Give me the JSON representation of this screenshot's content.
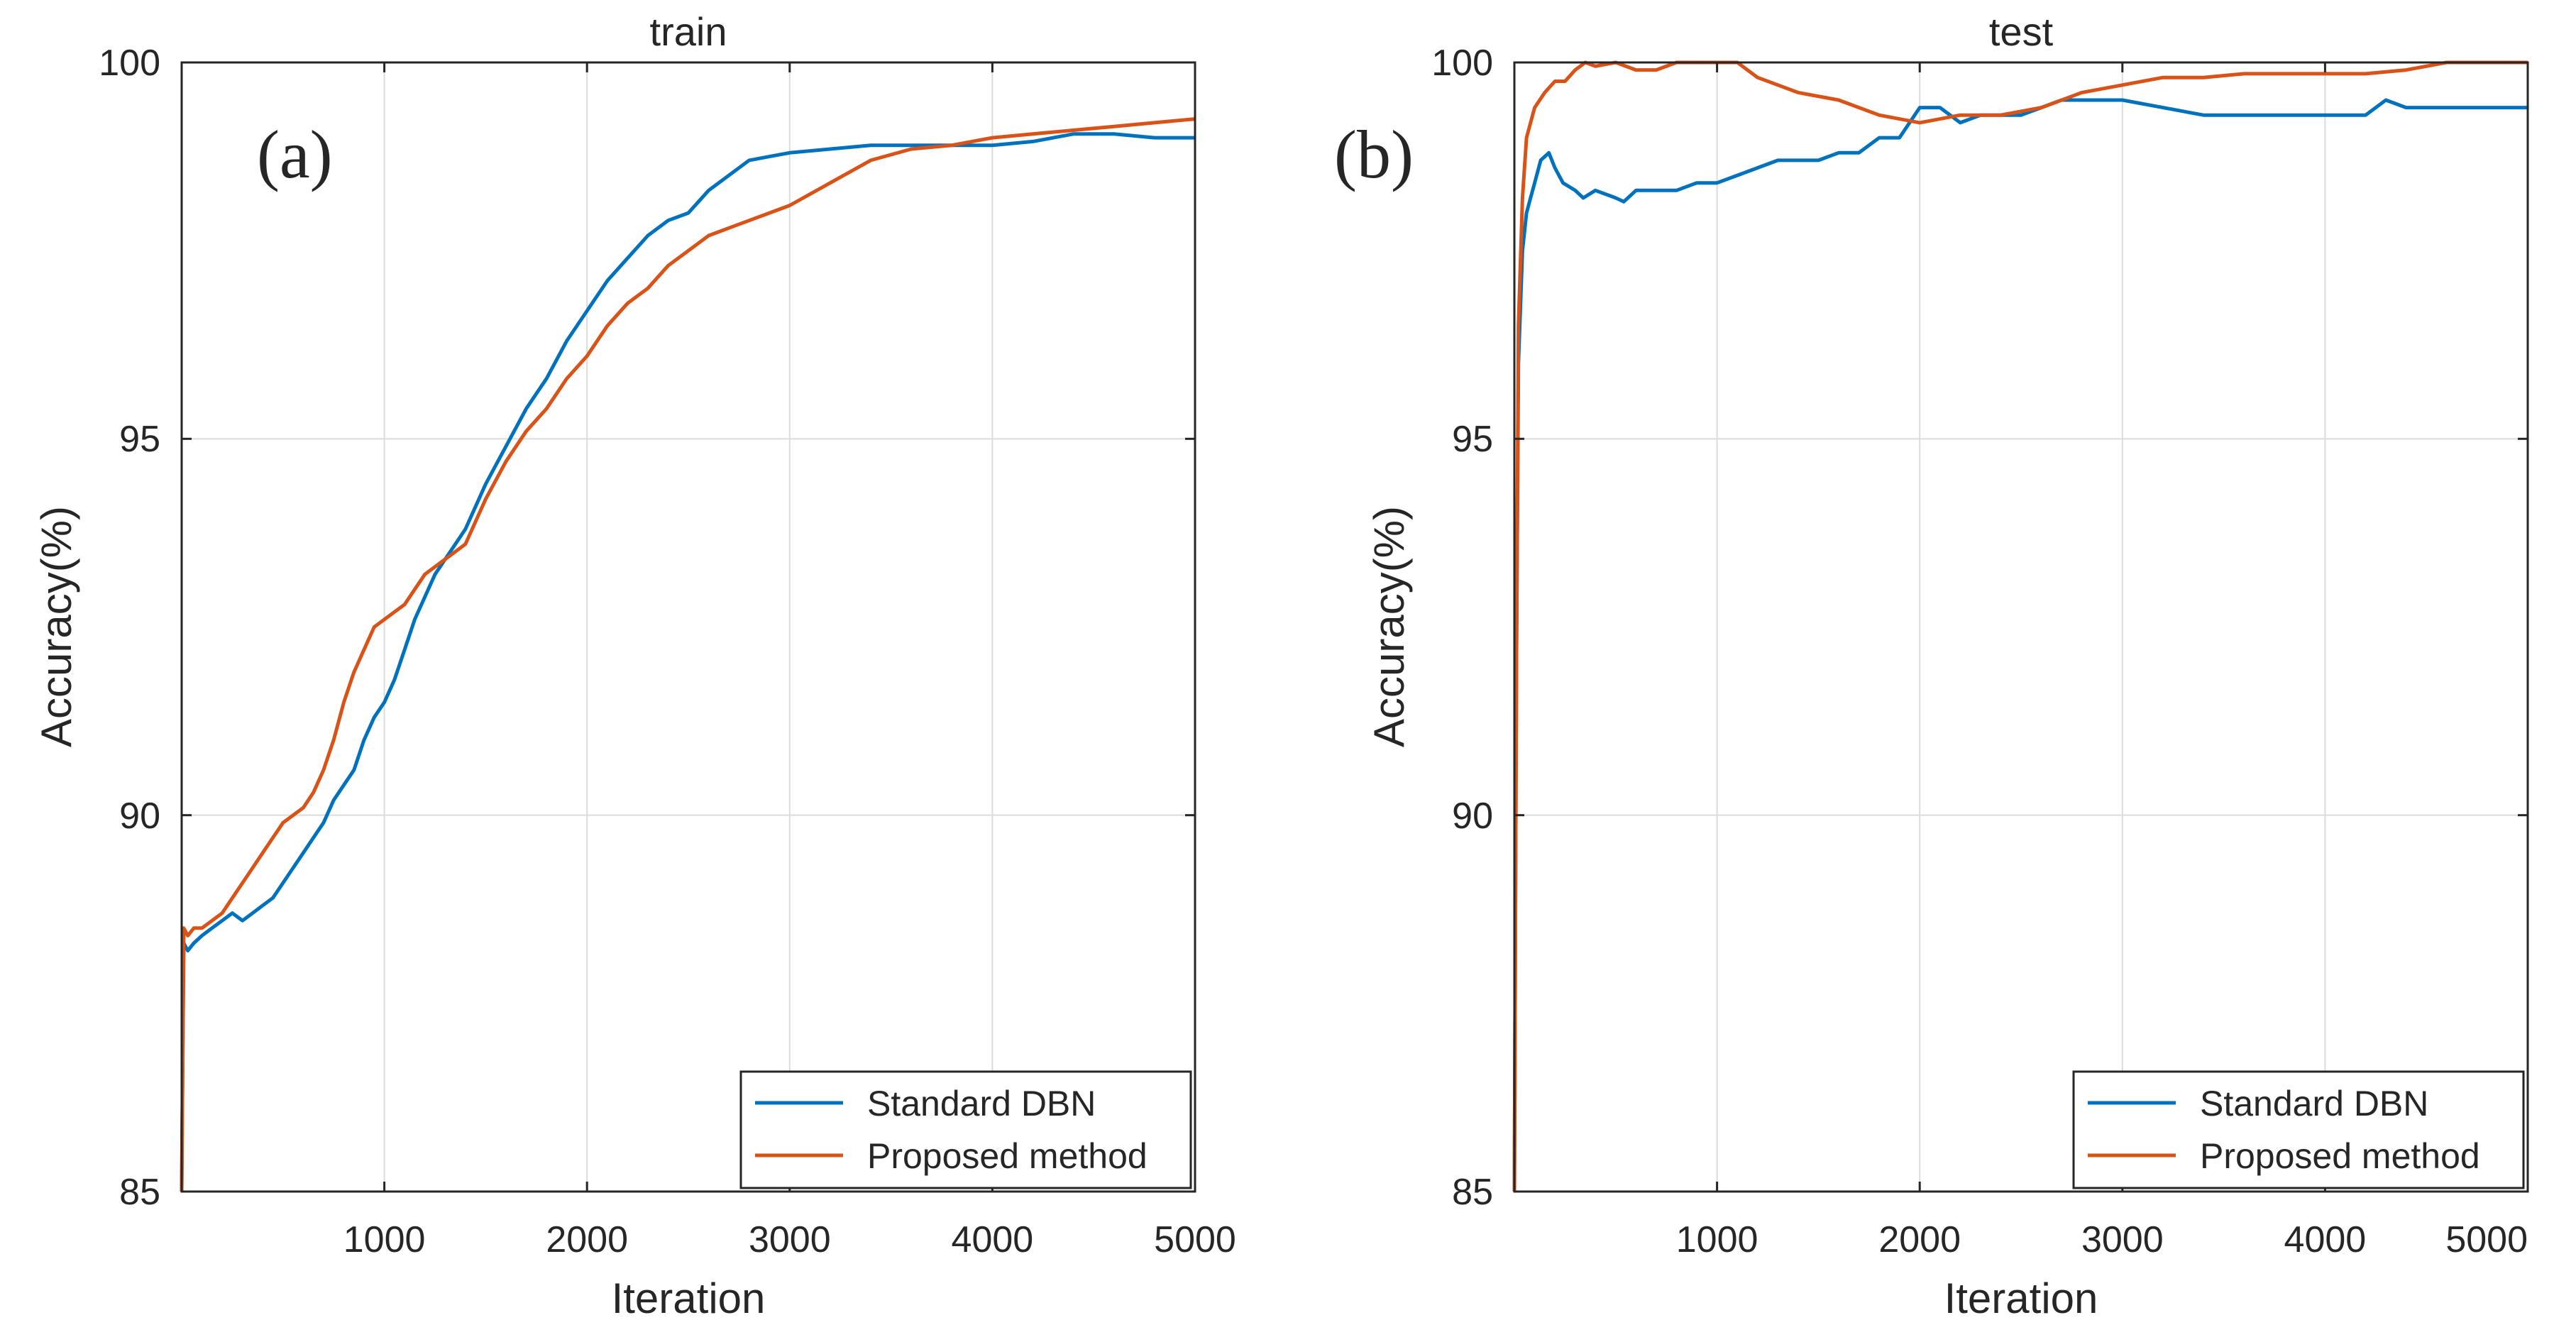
{
  "chart_data": [
    {
      "type": "line",
      "title": "train",
      "panel_label": "(a)",
      "xlabel": "Iteration",
      "ylabel": "Accuracy(%)",
      "xlim": [
        0,
        5000
      ],
      "ylim": [
        85,
        100
      ],
      "xticks": [
        1000,
        2000,
        3000,
        4000,
        5000
      ],
      "xtick_labels": [
        "1000",
        "2000",
        "3000",
        "4000",
        "5000"
      ],
      "yticks": [
        85,
        90,
        95,
        100
      ],
      "ytick_labels": [
        "85",
        "90",
        "95",
        "100"
      ],
      "grid": true,
      "legend_position": "bottom-right",
      "series": [
        {
          "name": "Standard DBN",
          "color": "#0072BD",
          "x": [
            0,
            10,
            30,
            60,
            100,
            150,
            200,
            250,
            300,
            350,
            400,
            450,
            500,
            550,
            600,
            650,
            700,
            750,
            800,
            850,
            900,
            950,
            1000,
            1050,
            1100,
            1150,
            1200,
            1250,
            1300,
            1350,
            1400,
            1450,
            1500,
            1600,
            1700,
            1800,
            1900,
            2000,
            2100,
            2200,
            2300,
            2400,
            2500,
            2600,
            2700,
            2800,
            2900,
            3000,
            3200,
            3400,
            3600,
            3800,
            4000,
            4200,
            4400,
            4600,
            4800,
            5000
          ],
          "y": [
            85.0,
            88.3,
            88.2,
            88.3,
            88.4,
            88.5,
            88.6,
            88.7,
            88.6,
            88.7,
            88.8,
            88.9,
            89.1,
            89.3,
            89.5,
            89.7,
            89.9,
            90.2,
            90.4,
            90.6,
            91.0,
            91.3,
            91.5,
            91.8,
            92.2,
            92.6,
            92.9,
            93.2,
            93.4,
            93.6,
            93.8,
            94.1,
            94.4,
            94.9,
            95.4,
            95.8,
            96.3,
            96.7,
            97.1,
            97.4,
            97.7,
            97.9,
            98.0,
            98.3,
            98.5,
            98.7,
            98.75,
            98.8,
            98.85,
            98.9,
            98.9,
            98.9,
            98.9,
            98.95,
            99.05,
            99.05,
            99.0,
            99.0
          ]
        },
        {
          "name": "Proposed method",
          "color": "#D95319",
          "x": [
            0,
            10,
            30,
            60,
            100,
            150,
            200,
            250,
            300,
            350,
            400,
            450,
            500,
            550,
            600,
            650,
            700,
            750,
            800,
            850,
            900,
            950,
            1000,
            1050,
            1100,
            1150,
            1200,
            1250,
            1300,
            1350,
            1400,
            1450,
            1500,
            1600,
            1700,
            1800,
            1900,
            2000,
            2100,
            2200,
            2300,
            2400,
            2500,
            2600,
            2700,
            2800,
            2900,
            3000,
            3200,
            3400,
            3600,
            3800,
            4000,
            4200,
            4400,
            4600,
            4800,
            5000
          ],
          "y": [
            85.0,
            88.5,
            88.4,
            88.5,
            88.5,
            88.6,
            88.7,
            88.9,
            89.1,
            89.3,
            89.5,
            89.7,
            89.9,
            90.0,
            90.1,
            90.3,
            90.6,
            91.0,
            91.5,
            91.9,
            92.2,
            92.5,
            92.6,
            92.7,
            92.8,
            93.0,
            93.2,
            93.3,
            93.4,
            93.5,
            93.6,
            93.9,
            94.2,
            94.7,
            95.1,
            95.4,
            95.8,
            96.1,
            96.5,
            96.8,
            97.0,
            97.3,
            97.5,
            97.7,
            97.8,
            97.9,
            98.0,
            98.1,
            98.4,
            98.7,
            98.85,
            98.9,
            99.0,
            99.05,
            99.1,
            99.15,
            99.2,
            99.25
          ]
        }
      ]
    },
    {
      "type": "line",
      "title": "test",
      "panel_label": "(b)",
      "xlabel": "Iteration",
      "ylabel": "Accuracy(%)",
      "xlim": [
        0,
        5000
      ],
      "ylim": [
        85,
        100
      ],
      "xticks": [
        1000,
        2000,
        3000,
        4000,
        5000
      ],
      "xtick_labels": [
        "1000",
        "2000",
        "3000",
        "4000",
        "5000"
      ],
      "yticks": [
        85,
        90,
        95,
        100
      ],
      "ytick_labels": [
        "85",
        "90",
        "95",
        "100"
      ],
      "grid": true,
      "legend_position": "bottom-right",
      "series": [
        {
          "name": "Standard DBN",
          "color": "#0072BD",
          "x": [
            0,
            10,
            20,
            40,
            60,
            80,
            100,
            130,
            170,
            200,
            240,
            300,
            340,
            400,
            500,
            540,
            600,
            700,
            800,
            900,
            1000,
            1100,
            1200,
            1300,
            1400,
            1500,
            1600,
            1700,
            1800,
            1900,
            2000,
            2100,
            2200,
            2300,
            2400,
            2500,
            2600,
            2700,
            2800,
            3000,
            3200,
            3400,
            3600,
            3800,
            4000,
            4200,
            4300,
            4400,
            4600,
            4800,
            5000
          ],
          "y": [
            85.0,
            92.0,
            96.0,
            97.5,
            98.0,
            98.2,
            98.4,
            98.7,
            98.8,
            98.6,
            98.4,
            98.3,
            98.2,
            98.3,
            98.2,
            98.15,
            98.3,
            98.3,
            98.3,
            98.4,
            98.4,
            98.5,
            98.6,
            98.7,
            98.7,
            98.7,
            98.8,
            98.8,
            99.0,
            99.0,
            99.4,
            99.4,
            99.2,
            99.3,
            99.3,
            99.3,
            99.4,
            99.5,
            99.5,
            99.5,
            99.4,
            99.3,
            99.3,
            99.3,
            99.3,
            99.3,
            99.5,
            99.4,
            99.4,
            99.4,
            99.4
          ]
        },
        {
          "name": "Proposed method",
          "color": "#D95319",
          "x": [
            0,
            10,
            20,
            40,
            60,
            80,
            100,
            150,
            200,
            250,
            300,
            350,
            400,
            500,
            600,
            700,
            800,
            900,
            1000,
            1100,
            1200,
            1400,
            1600,
            1800,
            2000,
            2200,
            2400,
            2600,
            2800,
            3000,
            3200,
            3400,
            3600,
            3800,
            4000,
            4200,
            4400,
            4600,
            4800,
            5000
          ],
          "y": [
            85.0,
            92.0,
            96.5,
            98.2,
            99.0,
            99.2,
            99.4,
            99.6,
            99.75,
            99.75,
            99.9,
            100.0,
            99.95,
            100.0,
            99.9,
            99.9,
            100.0,
            100.0,
            100.0,
            100.0,
            99.8,
            99.6,
            99.5,
            99.3,
            99.2,
            99.3,
            99.3,
            99.4,
            99.6,
            99.7,
            99.8,
            99.8,
            99.85,
            99.85,
            99.85,
            99.85,
            99.9,
            100.0,
            100.0,
            100.0
          ]
        }
      ]
    }
  ]
}
